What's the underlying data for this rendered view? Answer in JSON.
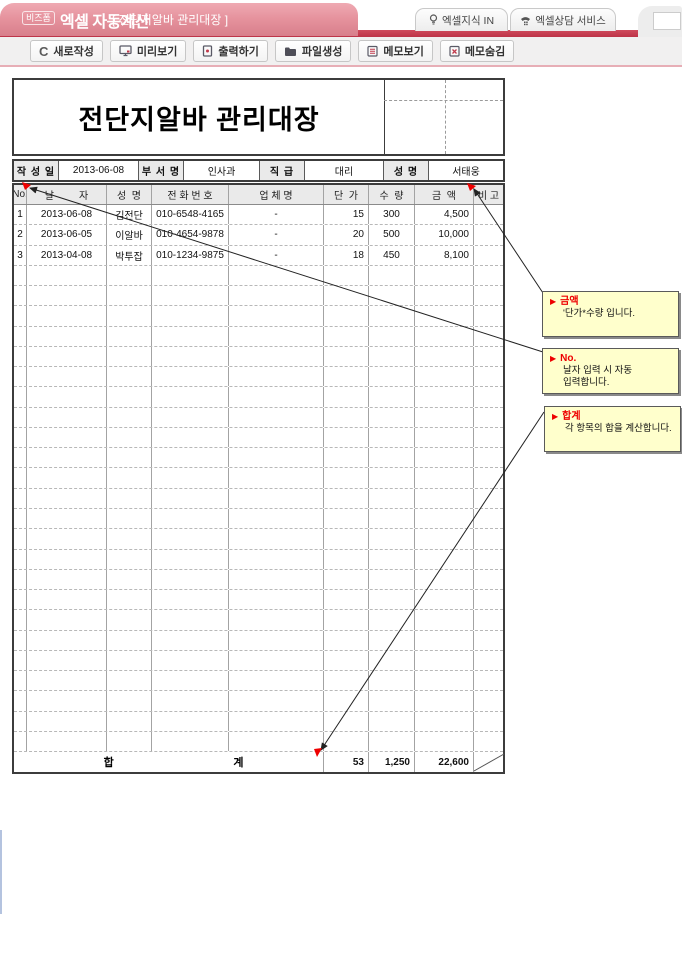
{
  "banner": {
    "logo_badge": "비즈폼",
    "app_title": "엑셀 자동계산",
    "doc_title": "[ 전단지알바 관리대장 ]",
    "tabs": [
      {
        "label": "엑셀지식 IN",
        "icon": "lightbulb-icon"
      },
      {
        "label": "엑셀상담 서비스",
        "icon": "phone-icon"
      }
    ]
  },
  "toolbar": {
    "buttons": [
      {
        "label": "새로작성",
        "icon": "refresh-icon"
      },
      {
        "label": "미리보기",
        "icon": "monitor-icon"
      },
      {
        "label": "출력하기",
        "icon": "print-icon"
      },
      {
        "label": "파일생성",
        "icon": "folder-icon"
      },
      {
        "label": "메모보기",
        "icon": "memo-show-icon"
      },
      {
        "label": "메모숨김",
        "icon": "memo-hide-icon"
      }
    ]
  },
  "document": {
    "title": "전단지알바 관리대장",
    "info": [
      {
        "label": "작 성 일",
        "value": "2013-06-08"
      },
      {
        "label": "부 서 명",
        "value": "인사과"
      },
      {
        "label": "직  급",
        "value": "대리"
      },
      {
        "label": "성  명",
        "value": "서태웅"
      }
    ],
    "table": {
      "headers": [
        "No.",
        "날         자",
        "성  명",
        "전 화 번 호",
        "업 체 명",
        "단  가",
        "수  량",
        "금  액",
        "비 고"
      ],
      "rows": [
        {
          "no": "1",
          "date": "2013-06-08",
          "name": "김전단",
          "phone": "010-6548-4165",
          "company": "-",
          "price": "15",
          "qty": "300",
          "amount": "4,500",
          "note": ""
        },
        {
          "no": "2",
          "date": "2013-06-05",
          "name": "이알바",
          "phone": "010-4654-9878",
          "company": "-",
          "price": "20",
          "qty": "500",
          "amount": "10,000",
          "note": ""
        },
        {
          "no": "3",
          "date": "2013-04-08",
          "name": "박투잡",
          "phone": "010-1234-9875",
          "company": "-",
          "price": "18",
          "qty": "450",
          "amount": "8,100",
          "note": ""
        }
      ],
      "empty_row_count": 24,
      "sum": {
        "label_left": "합",
        "label_right": "계",
        "price": "53",
        "qty": "1,250",
        "amount": "22,600"
      }
    }
  },
  "memos": [
    {
      "title": "금액",
      "body": "'단가*수량 입니다."
    },
    {
      "title": "No.",
      "body": "날자 입력 시 자동\n입력합니다."
    },
    {
      "title": "합계",
      "body": "각 항목의 합을 계산합니다."
    }
  ],
  "colors": {
    "banner_pink": "#E28D98",
    "accent_red": "#C23B4E",
    "memo_bg": "#FFFFCC",
    "marker_red": "#EE0000"
  }
}
